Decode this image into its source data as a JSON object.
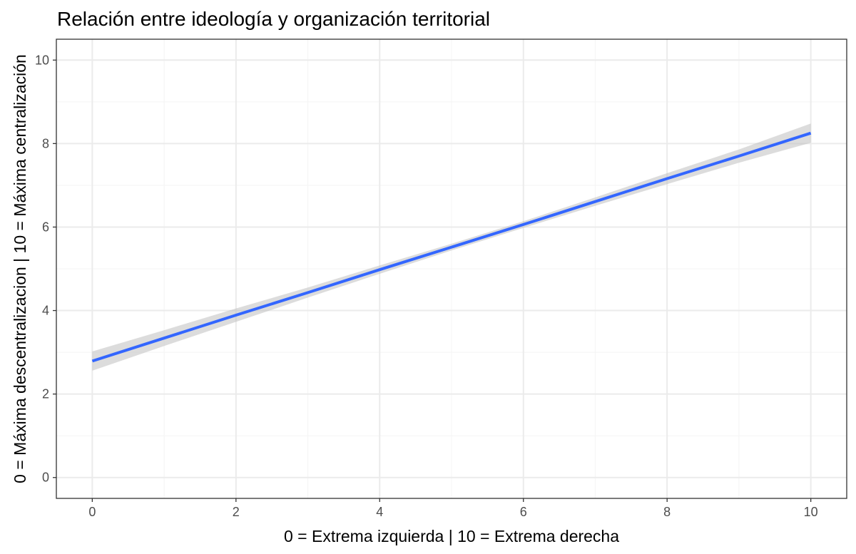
{
  "chart_data": {
    "type": "line",
    "title": "Relación entre ideología y organización territorial",
    "xlabel": "0 = Extrema izquierda   |   10 = Extrema derecha",
    "ylabel": "0 = Máxima descentralizacion  |  10 = Máxima centralización",
    "xlim": [
      -0.5,
      10.5
    ],
    "ylim": [
      -0.5,
      10.5
    ],
    "x_ticks": [
      0,
      2,
      4,
      6,
      8,
      10
    ],
    "y_ticks": [
      0,
      2,
      4,
      6,
      8,
      10
    ],
    "grid": true,
    "legend": "none",
    "series": [
      {
        "x": [
          0,
          1,
          2,
          3,
          4,
          5,
          6,
          7,
          8,
          9,
          10
        ],
        "y": [
          2.79,
          3.34,
          3.89,
          4.43,
          4.98,
          5.52,
          6.06,
          6.61,
          7.16,
          7.7,
          8.25
        ],
        "ci_lower": [
          2.56,
          3.15,
          3.73,
          4.31,
          4.88,
          5.44,
          5.98,
          6.51,
          7.03,
          7.54,
          8.02
        ],
        "ci_upper": [
          3.02,
          3.53,
          4.05,
          4.55,
          5.08,
          5.6,
          6.14,
          6.71,
          7.29,
          7.86,
          8.48
        ]
      }
    ],
    "colors": {
      "line": "#3366FF",
      "ribbon": "#BFBFBF",
      "grid_major": "#EBEBEB",
      "grid_minor": "#F5F5F5",
      "border": "#333333"
    }
  }
}
